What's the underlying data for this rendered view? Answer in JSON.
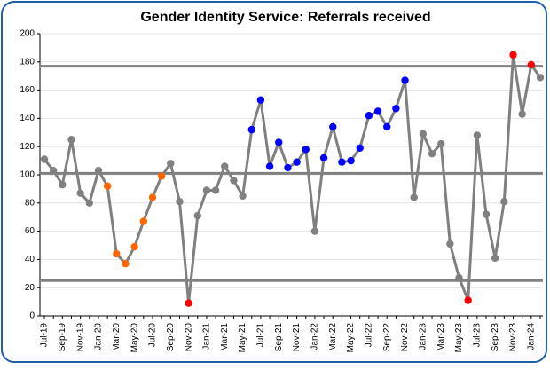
{
  "chart_data": {
    "type": "line",
    "title": "Gender Identity Service: Referrals received",
    "categories": [
      "Jul-19",
      null,
      "Sep-19",
      null,
      "Nov-19",
      null,
      "Jan-20",
      null,
      "Mar-20",
      null,
      "May-20",
      null,
      "Jul-20",
      null,
      "Sep-20",
      null,
      "Nov-20",
      null,
      "Jan-21",
      null,
      "Mar-21",
      null,
      "May-21",
      null,
      "Jul-21",
      null,
      "Sep-21",
      null,
      "Nov-21",
      null,
      "Jan-22",
      null,
      "Mar-22",
      null,
      "May-22",
      null,
      "Jul-22",
      null,
      "Sep-22",
      null,
      "Nov-22",
      null,
      "Jan-23",
      null,
      "Mar-23",
      null,
      "May-23",
      null,
      "Jul-23",
      null,
      "Sep-23",
      null,
      "Nov-23",
      null,
      "Jan-24",
      null
    ],
    "series": [
      {
        "color": "#808080",
        "values": [
          111,
          103,
          93,
          125,
          87,
          80,
          103,
          92,
          44,
          37,
          49,
          67,
          84,
          99,
          108,
          81,
          9,
          71,
          89,
          89,
          106,
          96,
          85,
          132,
          153,
          106,
          123,
          105,
          109,
          118,
          60,
          112,
          134,
          109,
          110,
          119,
          142,
          145,
          134,
          147,
          167,
          84,
          129,
          115,
          122,
          51,
          27,
          11,
          128,
          72,
          41,
          81,
          185,
          143,
          178,
          169
        ],
        "marker_colors": [
          "#808080",
          "#808080",
          "#808080",
          "#808080",
          "#808080",
          "#808080",
          "#808080",
          "#ff6600",
          "#ff6600",
          "#ff6600",
          "#ff6600",
          "#ff6600",
          "#ff6600",
          "#ff6600",
          "#808080",
          "#808080",
          "#ff0000",
          "#808080",
          "#808080",
          "#808080",
          "#808080",
          "#808080",
          "#808080",
          "#0000ff",
          "#0000ff",
          "#0000ff",
          "#0000ff",
          "#0000ff",
          "#0000ff",
          "#0000ff",
          "#808080",
          "#0000ff",
          "#0000ff",
          "#0000ff",
          "#0000ff",
          "#0000ff",
          "#0000ff",
          "#0000ff",
          "#0000ff",
          "#0000ff",
          "#0000ff",
          "#808080",
          "#808080",
          "#808080",
          "#808080",
          "#808080",
          "#808080",
          "#ff0000",
          "#808080",
          "#808080",
          "#808080",
          "#808080",
          "#ff0000",
          "#808080",
          "#ff0000",
          "#808080"
        ]
      }
    ],
    "reference_lines": [
      {
        "value": 177,
        "color": "#808080"
      },
      {
        "value": 101,
        "color": "#808080"
      },
      {
        "value": 25,
        "color": "#808080"
      }
    ],
    "ylim": [
      0,
      200
    ],
    "yticks": [
      0,
      20,
      40,
      60,
      80,
      100,
      120,
      140,
      160,
      180,
      200
    ],
    "grid": true
  }
}
